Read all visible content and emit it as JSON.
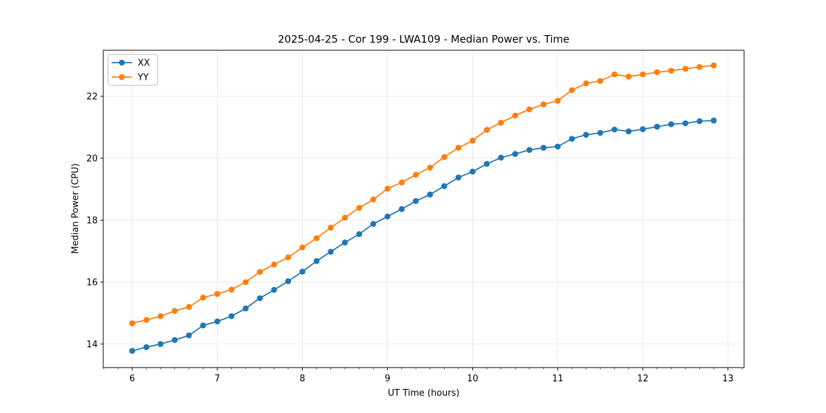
{
  "chart_data": {
    "type": "line",
    "title": "2025-04-25 - Cor 199 - LWA109 - Median Power vs. Time",
    "xlabel": "UT Time (hours)",
    "ylabel": "Median Power (CPU)",
    "xlim": [
      5.66,
      13.19
    ],
    "ylim": [
      13.24,
      23.49
    ],
    "xticks": [
      6,
      7,
      8,
      9,
      10,
      11,
      12,
      13
    ],
    "yticks": [
      14,
      16,
      18,
      20,
      22
    ],
    "x_minor_tick_interval_hours": 0.1667,
    "grid": true,
    "legend_position": "upper-left",
    "colors": {
      "series_xx": "#1f77b4",
      "series_yy": "#ff7f0e",
      "grid": "#e7e7e7",
      "frame": "#000000",
      "legend_border": "#b7b7b7",
      "background": "#ffffff"
    },
    "x": [
      6.0,
      6.167,
      6.333,
      6.5,
      6.667,
      6.833,
      7.0,
      7.167,
      7.333,
      7.5,
      7.667,
      7.833,
      8.0,
      8.167,
      8.333,
      8.5,
      8.667,
      8.833,
      9.0,
      9.167,
      9.333,
      9.5,
      9.667,
      9.833,
      10.0,
      10.167,
      10.333,
      10.5,
      10.667,
      10.833,
      11.0,
      11.167,
      11.333,
      11.5,
      11.667,
      11.833,
      12.0,
      12.167,
      12.333,
      12.5,
      12.667,
      12.833
    ],
    "series": [
      {
        "name": "XX",
        "color": "#1f77b4",
        "marker": "circle",
        "values": [
          13.78,
          13.9,
          14.0,
          14.13,
          14.28,
          14.6,
          14.73,
          14.9,
          15.15,
          15.48,
          15.75,
          16.03,
          16.34,
          16.68,
          16.98,
          17.28,
          17.55,
          17.88,
          18.12,
          18.36,
          18.62,
          18.83,
          19.1,
          19.38,
          19.57,
          19.82,
          20.02,
          20.14,
          20.27,
          20.34,
          20.38,
          20.63,
          20.76,
          20.82,
          20.93,
          20.87,
          20.94,
          21.02,
          21.1,
          21.13,
          21.2,
          21.22
        ]
      },
      {
        "name": "YY",
        "color": "#ff7f0e",
        "marker": "circle",
        "values": [
          14.67,
          14.78,
          14.9,
          15.07,
          15.2,
          15.5,
          15.62,
          15.76,
          16.0,
          16.33,
          16.57,
          16.8,
          17.12,
          17.42,
          17.76,
          18.08,
          18.4,
          18.67,
          19.02,
          19.22,
          19.47,
          19.7,
          20.04,
          20.34,
          20.57,
          20.92,
          21.15,
          21.38,
          21.58,
          21.74,
          21.86,
          22.2,
          22.42,
          22.5,
          22.71,
          22.64,
          22.71,
          22.78,
          22.83,
          22.89,
          22.95,
          23.0
        ]
      }
    ]
  }
}
